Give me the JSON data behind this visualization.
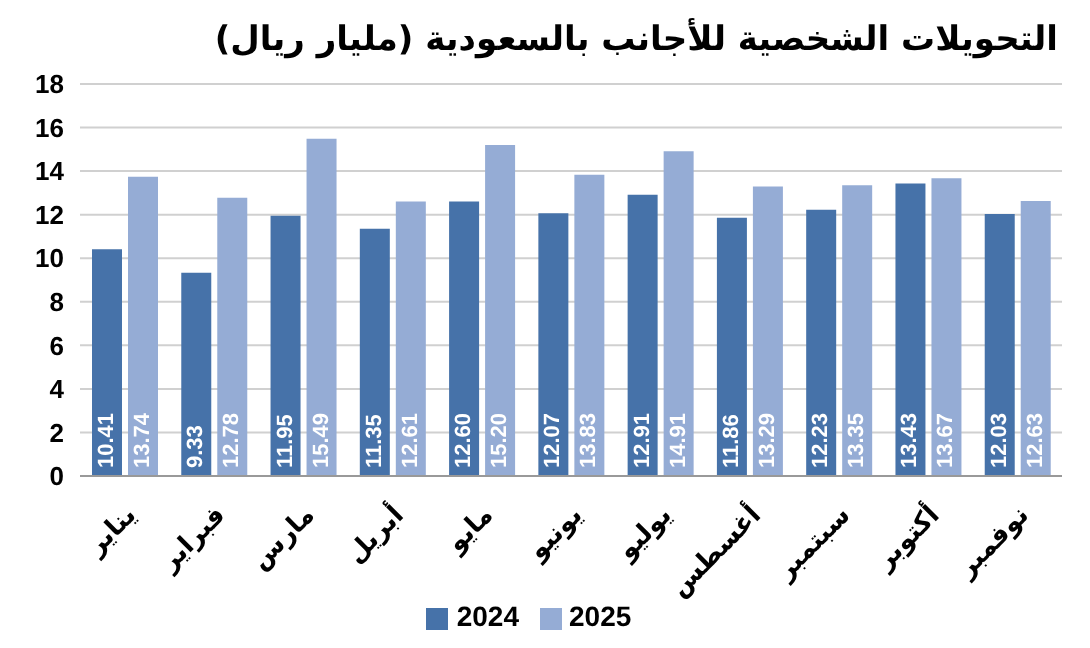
{
  "chart_data": {
    "type": "bar",
    "title": "التحويلات الشخصية للأجانب بالسعودية (مليار ريال)",
    "categories": [
      "يناير",
      "فبراير",
      "مارس",
      "أبريل",
      "مايو",
      "يونيو",
      "يوليو",
      "أغسطس",
      "سبتمبر",
      "أكتوبر",
      "نوفمبر"
    ],
    "series": [
      {
        "name": "2024",
        "color": "#4672a9",
        "values": [
          10.41,
          9.33,
          11.95,
          11.35,
          12.6,
          12.07,
          12.91,
          11.86,
          12.23,
          13.43,
          12.03
        ],
        "value_labels": [
          "10.41",
          "9.33",
          "11.95",
          "11.35",
          "12.60",
          "12.07",
          "12.91",
          "11.86",
          "12.23",
          "13.43",
          "12.03"
        ]
      },
      {
        "name": "2025",
        "color": "#95acd5",
        "values": [
          13.74,
          12.78,
          15.49,
          12.61,
          15.2,
          13.83,
          14.91,
          13.29,
          13.35,
          13.67,
          12.63
        ],
        "value_labels": [
          "13.74",
          "12.78",
          "15.49",
          "12.61",
          "15.20",
          "13.83",
          "14.91",
          "13.29",
          "13.35",
          "13.67",
          "12.63"
        ]
      }
    ],
    "ylim": [
      0,
      18
    ],
    "yticks": [
      0,
      2,
      4,
      6,
      8,
      10,
      12,
      14,
      16,
      18
    ],
    "grid": "y",
    "legend": "bottom"
  }
}
